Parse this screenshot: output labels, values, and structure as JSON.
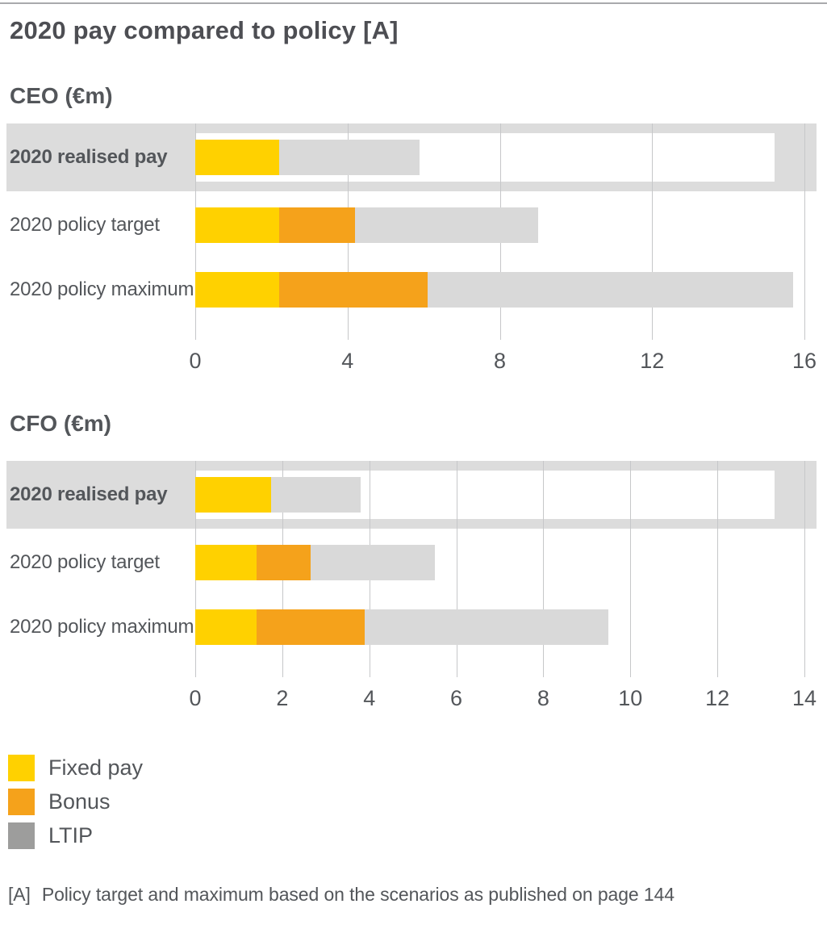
{
  "title": "2020 pay compared to policy [A]",
  "colors": {
    "fixed": "#FFD100",
    "bonus": "#F5A21B",
    "ltip": "#D9D9D9",
    "band": "#DCDCDC",
    "gridline": "#C6C7C9",
    "text": "#53565A"
  },
  "legend": [
    {
      "label": "Fixed pay",
      "color": "#FFD100"
    },
    {
      "label": "Bonus",
      "color": "#F5A21B"
    },
    {
      "label": "LTIP",
      "color": "#9D9D9C"
    }
  ],
  "footnote": {
    "marker": "[A]",
    "text": "Policy target and maximum based on the scenarios as published on page 144"
  },
  "chart_data": [
    {
      "type": "bar",
      "orientation": "horizontal",
      "stacked": true,
      "title": "CEO (€m)",
      "unit": "€m",
      "categories": [
        "2020 realised pay",
        "2020 policy target",
        "2020 policy maximum"
      ],
      "series": [
        {
          "name": "Fixed pay",
          "values": [
            2.2,
            2.2,
            2.2
          ]
        },
        {
          "name": "Bonus",
          "values": [
            0,
            2.0,
            3.9
          ]
        },
        {
          "name": "LTIP",
          "values": [
            3.7,
            4.8,
            9.6
          ]
        }
      ],
      "totals": [
        5.9,
        9.0,
        15.7
      ],
      "xlim": [
        0,
        16
      ],
      "xticks": [
        0,
        4,
        8,
        12,
        16
      ],
      "grid": true,
      "highlighted_category": "2020 realised pay"
    },
    {
      "type": "bar",
      "orientation": "horizontal",
      "stacked": true,
      "title": "CFO (€m)",
      "unit": "€m",
      "categories": [
        "2020 realised pay",
        "2020 policy target",
        "2020 policy maximum"
      ],
      "series": [
        {
          "name": "Fixed pay",
          "values": [
            1.75,
            1.4,
            1.4
          ]
        },
        {
          "name": "Bonus",
          "values": [
            0,
            1.25,
            2.5
          ]
        },
        {
          "name": "LTIP",
          "values": [
            2.05,
            2.85,
            5.6
          ]
        }
      ],
      "totals": [
        3.8,
        5.5,
        9.5
      ],
      "xlim": [
        0,
        14
      ],
      "xticks": [
        0,
        2,
        4,
        6,
        8,
        10,
        12,
        14
      ],
      "grid": true,
      "highlighted_category": "2020 realised pay"
    }
  ]
}
